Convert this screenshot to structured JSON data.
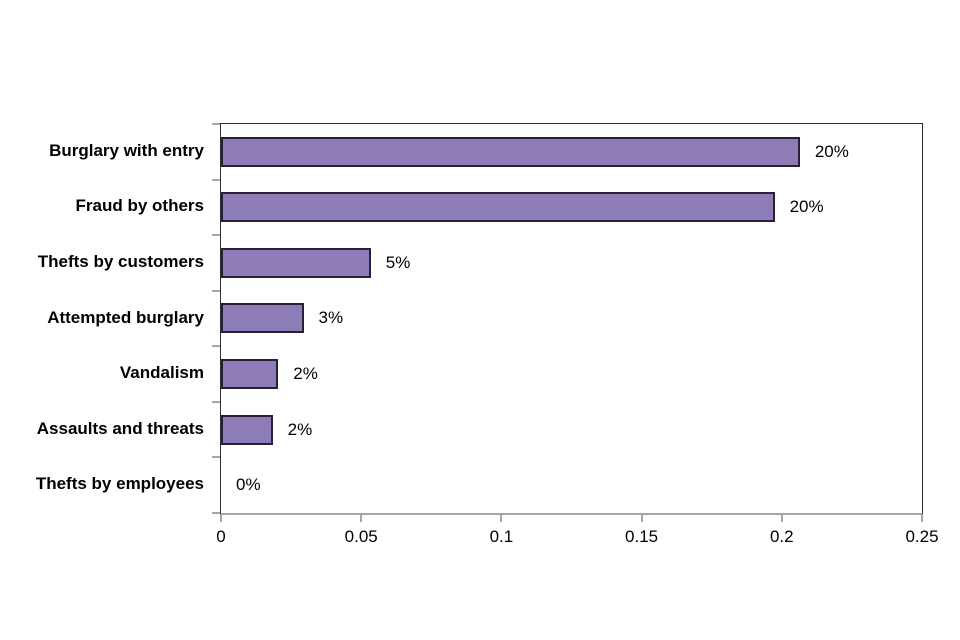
{
  "chart_data": {
    "type": "bar",
    "orientation": "horizontal",
    "title": "",
    "xlabel": "",
    "ylabel": "",
    "categories": [
      "Burglary with entry",
      "Fraud by others",
      "Thefts by customers",
      "Attempted burglary",
      "Vandalism",
      "Assaults and threats",
      "Thefts by employees"
    ],
    "values": [
      0.205,
      0.196,
      0.052,
      0.028,
      0.019,
      0.017,
      0
    ],
    "data_labels": [
      "20%",
      "20%",
      "5%",
      "3%",
      "2%",
      "2%",
      "0%"
    ],
    "xlim": [
      0,
      0.25
    ],
    "x_tick_labels": [
      "0",
      "0.05",
      "0.1",
      "0.15",
      "0.2",
      "0.25"
    ],
    "x_tick_values": [
      0,
      0.05,
      0.1,
      0.15,
      0.2,
      0.25
    ],
    "grid": false,
    "legend": false,
    "colors": {
      "bar_fill": "#8e7cb6",
      "bar_border": "#26203a",
      "axis_line": "#a6a6a6",
      "plot_border": "#2f2f2f",
      "text": "#000000"
    }
  }
}
